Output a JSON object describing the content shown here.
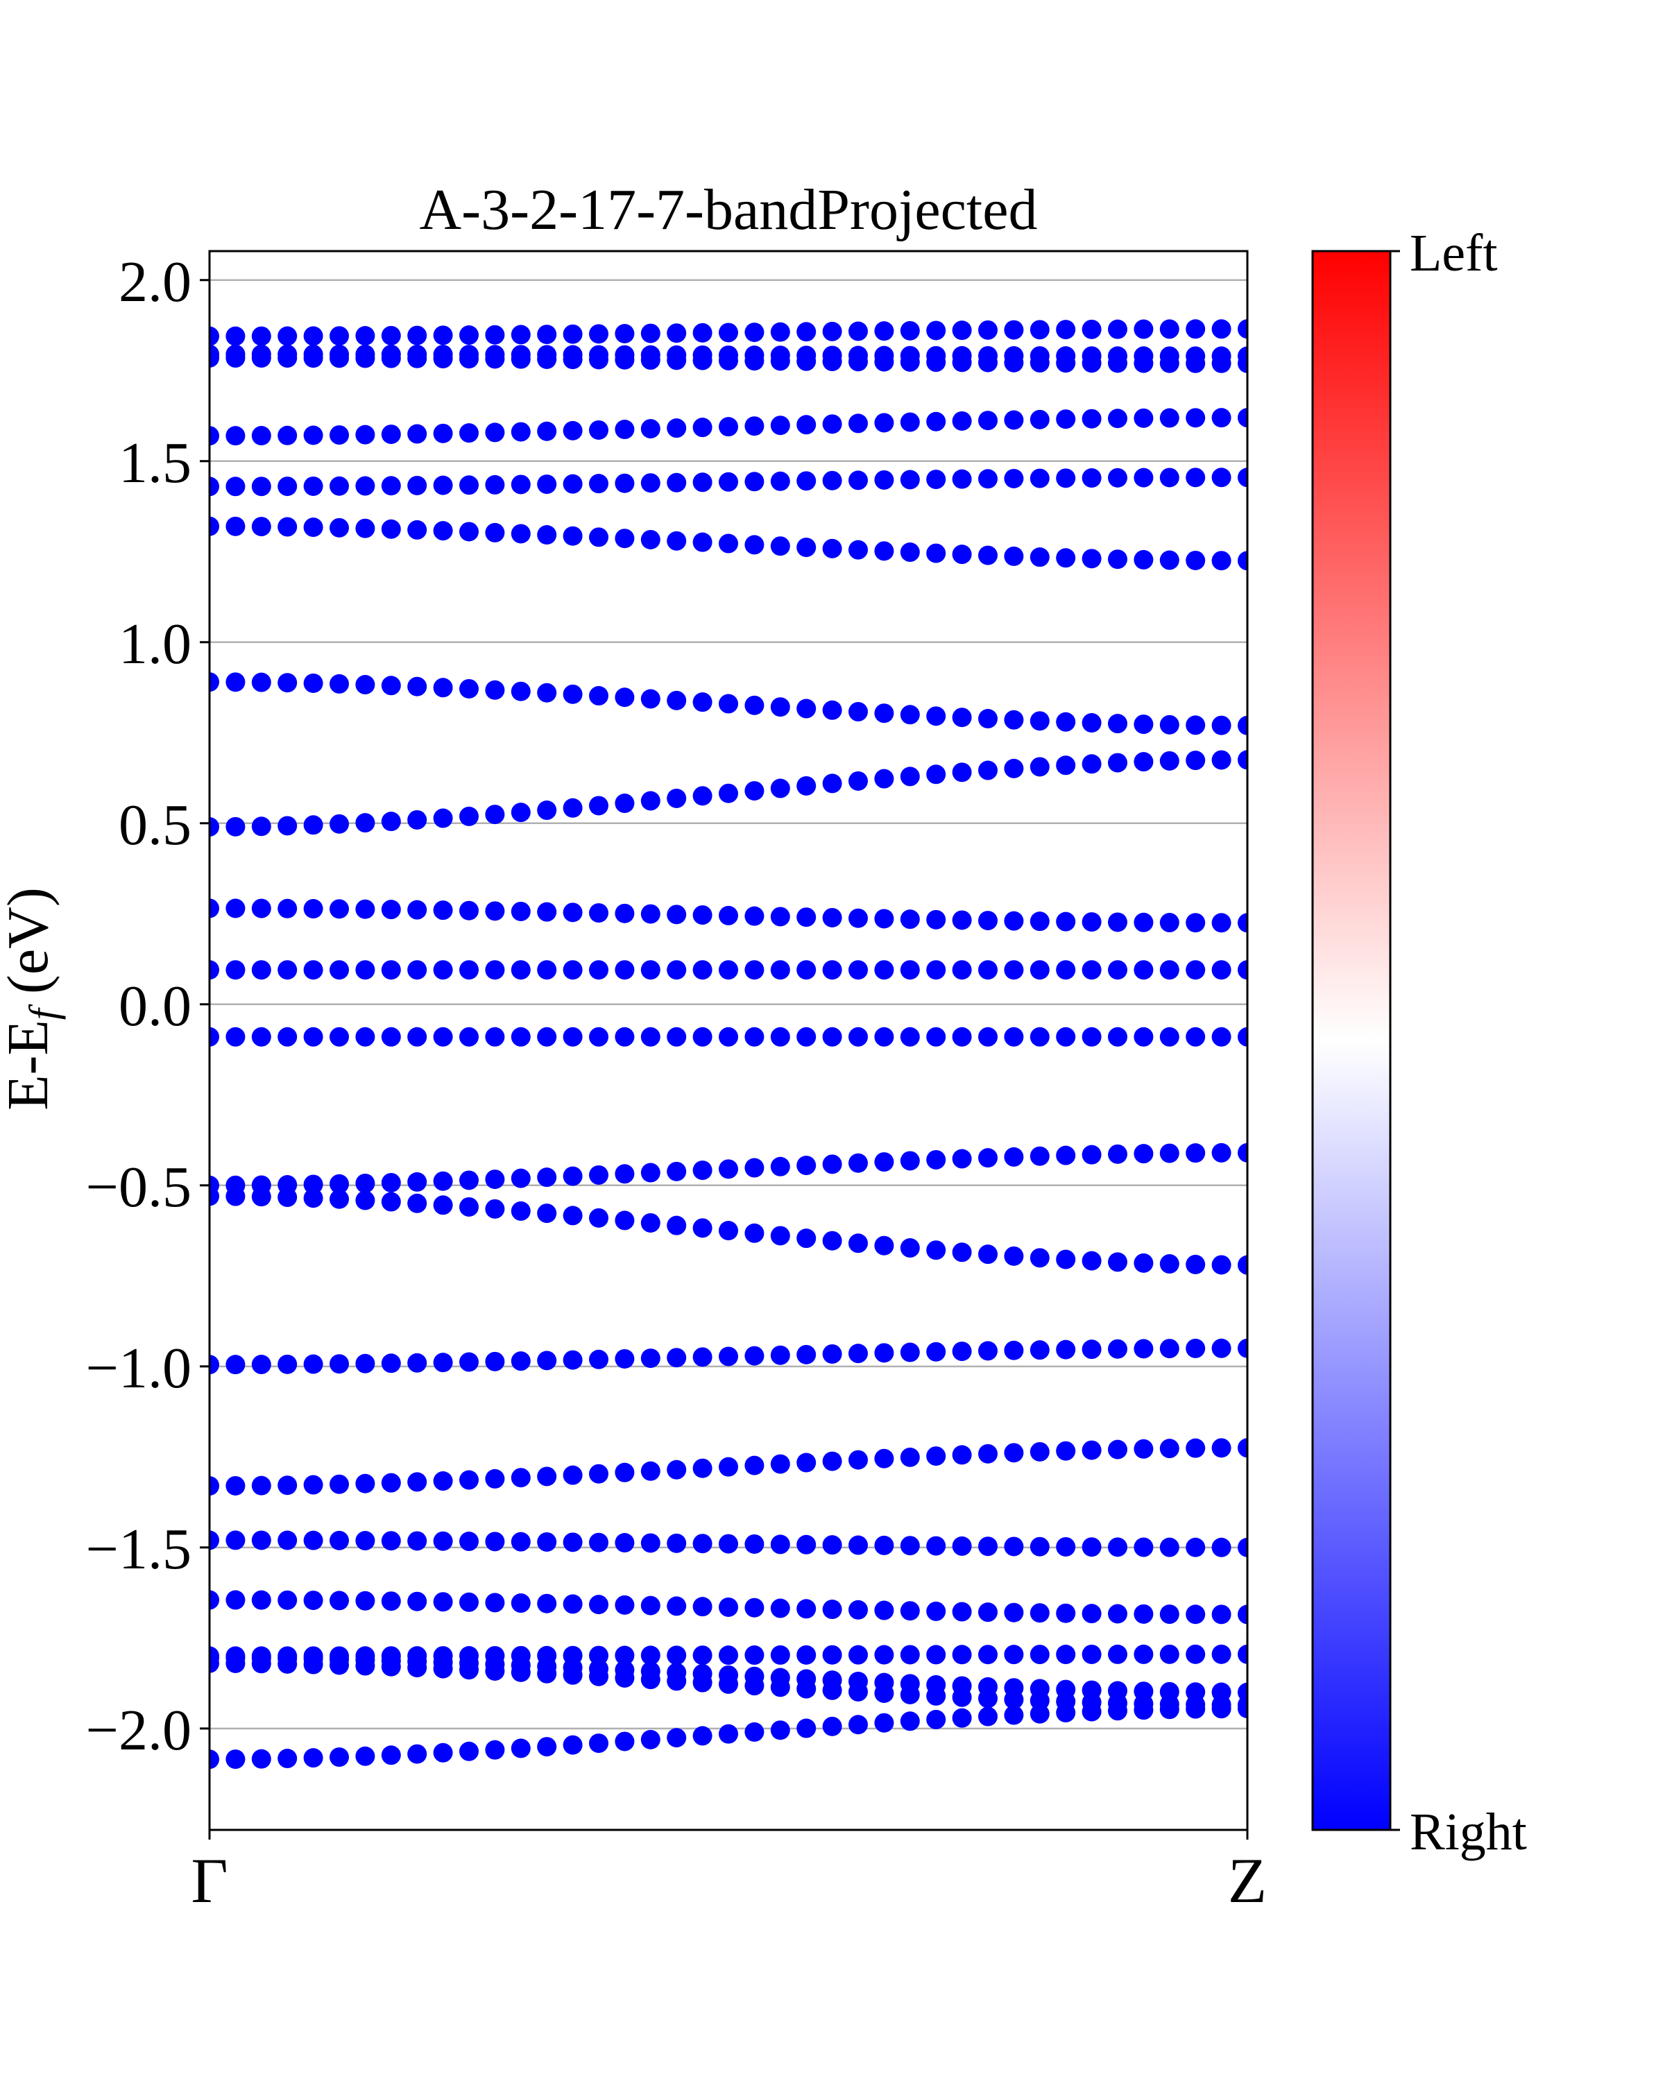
{
  "chart_data": {
    "type": "scatter",
    "title": "A-3-2-17-7-bandProjected",
    "ylabel": "E-E",
    "ylabel_sub": "f",
    "ylabel_unit": " (eV)",
    "x_ticks": [
      "Γ",
      "Z"
    ],
    "ylim": [
      -2.28,
      2.08
    ],
    "y_ticks": [
      "2.0",
      "1.5",
      "1.0",
      "0.5",
      "0.0",
      "−0.5",
      "−1.0",
      "−1.5",
      "−2.0"
    ],
    "y_tick_values": [
      2.0,
      1.5,
      1.0,
      0.5,
      0.0,
      -0.5,
      -1.0,
      -1.5,
      -2.0
    ],
    "grid": "horizontal",
    "point_color": "#0000ff",
    "points_per_band": 41,
    "colorbar": {
      "top_label": "Left",
      "bottom_label": "Right",
      "colors": [
        "#ff0000",
        "#ffffff",
        "#0000ff"
      ]
    },
    "bands": [
      {
        "start": 1.845,
        "end": 1.865
      },
      {
        "start": 1.795,
        "end": 1.79
      },
      {
        "start": 1.785,
        "end": 1.77
      },
      {
        "start": 1.57,
        "end": 1.62
      },
      {
        "start": 1.43,
        "end": 1.455
      },
      {
        "start": 1.32,
        "end": 1.225
      },
      {
        "start": 0.89,
        "end": 0.77
      },
      {
        "start": 0.49,
        "end": 0.675
      },
      {
        "start": 0.265,
        "end": 0.225
      },
      {
        "start": 0.095,
        "end": 0.095
      },
      {
        "start": -0.09,
        "end": -0.09
      },
      {
        "start": -0.5,
        "end": -0.41
      },
      {
        "start": -0.53,
        "end": -0.72
      },
      {
        "start": -0.995,
        "end": -0.95
      },
      {
        "start": -1.33,
        "end": -1.225
      },
      {
        "start": -1.48,
        "end": -1.5
      },
      {
        "start": -1.645,
        "end": -1.685
      },
      {
        "start": -1.8,
        "end": -1.795
      },
      {
        "start": -1.805,
        "end": -1.9
      },
      {
        "start": -1.82,
        "end": -1.935
      },
      {
        "start": -2.085,
        "end": -1.945
      }
    ]
  }
}
